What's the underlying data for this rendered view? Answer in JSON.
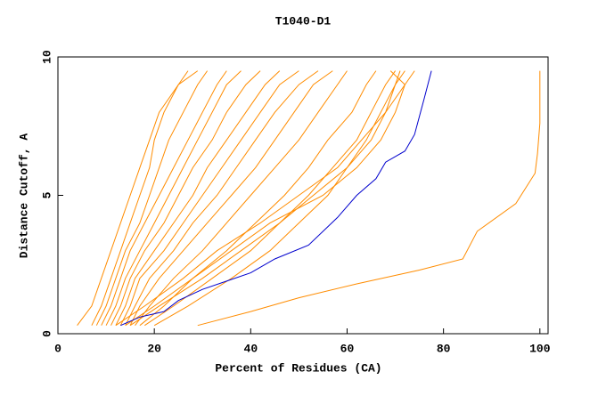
{
  "chart_data": {
    "type": "line",
    "title": "T1040-D1",
    "x_label": "Percent of Residues (CA)",
    "y_label": "Distance Cutoff, A",
    "xlim": [
      0,
      101.7
    ],
    "ylim": [
      0,
      10
    ],
    "xticks": [
      0,
      20,
      40,
      60,
      80,
      100
    ],
    "yticks": [
      0,
      5,
      10
    ],
    "series": [
      {
        "color": "#ff8c00",
        "x": [
          4,
          7,
          9,
          11,
          13,
          15,
          17,
          19,
          21,
          25,
          27
        ],
        "values": [
          0.3,
          1,
          2,
          3,
          4,
          5,
          6,
          7,
          8,
          9,
          9.5
        ]
      },
      {
        "color": "#ff8c00",
        "x": [
          7,
          9,
          11,
          13,
          15,
          17,
          19,
          20,
          22,
          25,
          29
        ],
        "values": [
          0.3,
          1,
          2,
          3,
          4,
          5,
          6,
          7,
          8,
          9,
          9.5
        ]
      },
      {
        "color": "#ff8c00",
        "x": [
          8,
          10,
          12,
          14,
          17,
          19,
          21,
          23,
          26,
          29,
          31
        ],
        "values": [
          0.3,
          1,
          2,
          3,
          4,
          5,
          6,
          7,
          8,
          9,
          9.5
        ]
      },
      {
        "color": "#ff8c00",
        "x": [
          9,
          11,
          13,
          15,
          18,
          21,
          24,
          27,
          30,
          33,
          35
        ],
        "values": [
          0.3,
          1,
          2,
          3,
          4,
          5,
          6,
          7,
          8,
          9,
          9.5
        ]
      },
      {
        "color": "#ff8c00",
        "x": [
          10,
          12,
          14,
          17,
          20,
          23,
          26,
          29,
          32,
          35,
          38
        ],
        "values": [
          0.3,
          1,
          2,
          3,
          4,
          5,
          6,
          7,
          8,
          9,
          9.5
        ]
      },
      {
        "color": "#ff8c00",
        "x": [
          11,
          13,
          15,
          18,
          22,
          25,
          28,
          32,
          35,
          39,
          42
        ],
        "values": [
          0.3,
          1,
          2,
          3,
          4,
          5,
          6,
          7,
          8,
          9,
          9.5
        ]
      },
      {
        "color": "#ff8c00",
        "x": [
          12,
          14,
          16,
          20,
          24,
          28,
          31,
          35,
          39,
          43,
          46
        ],
        "values": [
          0.3,
          1,
          2,
          3,
          4,
          5,
          6,
          7,
          8,
          9,
          9.5
        ]
      },
      {
        "color": "#ff8c00",
        "x": [
          13,
          15,
          17,
          22,
          26,
          30,
          34,
          38,
          42,
          46,
          50
        ],
        "values": [
          0.3,
          1,
          2,
          3,
          4,
          5,
          6,
          7,
          8,
          9,
          9.5
        ]
      },
      {
        "color": "#ff8c00",
        "x": [
          14,
          16,
          19,
          24,
          28,
          33,
          37,
          41,
          45,
          50,
          54
        ],
        "values": [
          0.3,
          1,
          2,
          3,
          4,
          5,
          6,
          7,
          8,
          9,
          9.5
        ]
      },
      {
        "color": "#ff8c00",
        "x": [
          15,
          17,
          21,
          26,
          31,
          36,
          41,
          45,
          49,
          53,
          57
        ],
        "values": [
          0.3,
          1,
          2,
          3,
          4,
          5,
          6,
          7,
          8,
          9,
          9.5
        ]
      },
      {
        "color": "#ff8c00",
        "x": [
          16,
          19,
          24,
          30,
          35,
          40,
          45,
          50,
          54,
          58,
          60
        ],
        "values": [
          0.3,
          1,
          2,
          3,
          4,
          5,
          6,
          7,
          8,
          9,
          9.5
        ]
      },
      {
        "color": "#ff8c00",
        "x": [
          17,
          22,
          28,
          35,
          41,
          47,
          52,
          56,
          61,
          64,
          66
        ],
        "values": [
          0.3,
          1,
          2,
          3,
          4,
          5,
          6,
          7,
          8,
          9,
          9.5
        ]
      },
      {
        "color": "#ff8c00",
        "x": [
          18,
          24,
          32,
          40,
          46,
          52,
          57,
          62,
          65,
          68,
          70
        ],
        "values": [
          0.3,
          1,
          2,
          3,
          4,
          5,
          6,
          7,
          8,
          9,
          9.5
        ]
      },
      {
        "color": "#ff8c00",
        "x": [
          20,
          27,
          36,
          44,
          50,
          56,
          60,
          64,
          67,
          70,
          72
        ],
        "values": [
          0.3,
          1,
          2,
          3,
          4,
          5,
          6,
          7,
          8,
          9,
          9.5
        ]
      },
      {
        "color": "#ff8c00",
        "x": [
          15,
          21,
          30,
          38,
          46,
          53,
          60,
          65,
          68,
          72,
          74
        ],
        "values": [
          0.3,
          1,
          2,
          3,
          4,
          5,
          6,
          7,
          8,
          9,
          9.5
        ]
      },
      {
        "color": "#ff8c00",
        "x": [
          12,
          18,
          26,
          33,
          42,
          50,
          58,
          63,
          68,
          70,
          71
        ],
        "values": [
          0.3,
          1,
          2,
          3,
          4,
          5,
          6,
          7,
          8,
          9,
          9.5
        ]
      },
      {
        "color": "#ff8c00",
        "x": [
          14,
          20,
          28,
          36,
          44,
          55,
          62,
          67,
          70,
          72,
          69
        ],
        "values": [
          0.3,
          1,
          2,
          3,
          4,
          5,
          6,
          7,
          8,
          9,
          9.5
        ]
      },
      {
        "color": "#ff8c00",
        "x": [
          29,
          40,
          50,
          62,
          75,
          84,
          87,
          95,
          99,
          99.5,
          100,
          100
        ],
        "values": [
          0.3,
          0.8,
          1.3,
          1.8,
          2.3,
          2.7,
          3.7,
          4.7,
          5.8,
          6.5,
          7.6,
          9.5
        ]
      },
      {
        "color": "#0000cd",
        "x": [
          13,
          17,
          22,
          25,
          30,
          35,
          40,
          45,
          52,
          58,
          62,
          66,
          68,
          72,
          74,
          76,
          77.5
        ],
        "values": [
          0.3,
          0.6,
          0.8,
          1.2,
          1.6,
          1.9,
          2.2,
          2.7,
          3.2,
          4.2,
          5,
          5.6,
          6.2,
          6.6,
          7.2,
          8.5,
          9.5
        ]
      }
    ]
  }
}
